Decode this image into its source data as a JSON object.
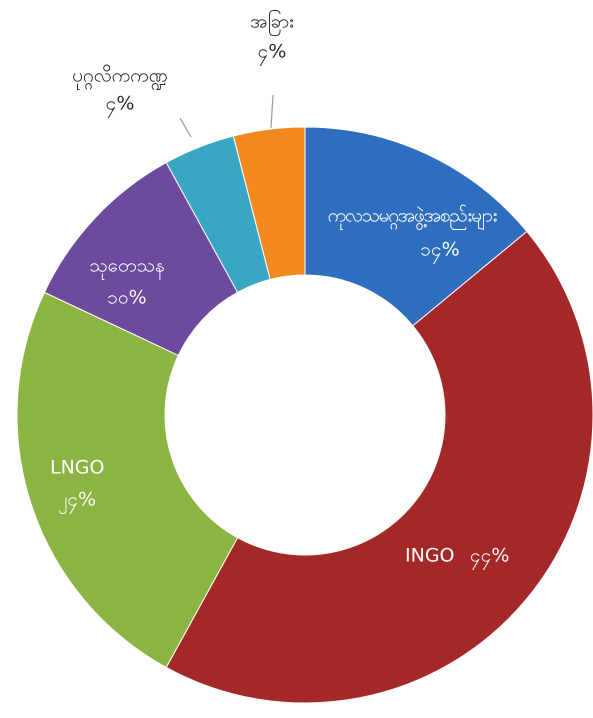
{
  "chart_data": {
    "type": "donut",
    "categories": [
      "ကုလသမဂ္ဂအဖွဲ့အစည်းများ",
      "INGO",
      "LNGO",
      "သုတေသန",
      "ပုဂ္ဂလိကကဏ္ဍ",
      "အခြား"
    ],
    "values": [
      14,
      44,
      24,
      10,
      4,
      4
    ],
    "value_labels": [
      "၁၄%",
      "၄၄%",
      "၂၄%",
      "၁၀%",
      "၄%",
      "၄%"
    ],
    "colors": [
      "#2f6ebf",
      "#a52828",
      "#8cb443",
      "#6c4a9e",
      "#3aa6c3",
      "#f2891f"
    ]
  }
}
